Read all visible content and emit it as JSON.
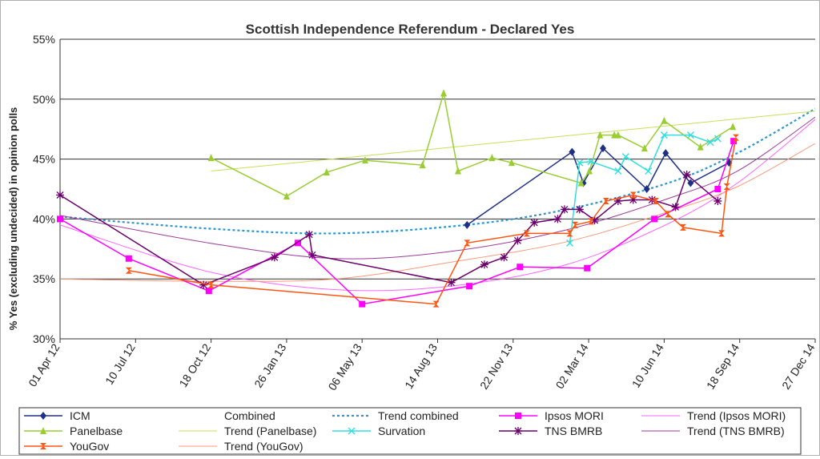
{
  "chart_data": {
    "type": "line",
    "title": "Scottish Independence Referendum - Declared Yes",
    "ylabel": "% Yes (excluding undecided) in opinion polls",
    "ylim": [
      30,
      55
    ],
    "y_ticks": [
      30,
      35,
      40,
      45,
      50,
      55
    ],
    "y_tick_labels": [
      "30%",
      "35%",
      "40%",
      "45%",
      "50%",
      "55%"
    ],
    "x_range": [
      "2012-04-01",
      "2014-12-27"
    ],
    "x_ticks": [
      "2012-04-01",
      "2012-07-10",
      "2012-10-18",
      "2013-01-26",
      "2013-05-06",
      "2013-08-14",
      "2013-11-22",
      "2014-03-02",
      "2014-06-10",
      "2014-09-18",
      "2014-12-27"
    ],
    "x_tick_labels": [
      "01 Apr 12",
      "10 Jul 12",
      "18 Oct 12",
      "26 Jan 13",
      "06 May 13",
      "14 Aug 13",
      "22 Nov 13",
      "02 Mar 14",
      "10 Jun 14",
      "18 Sep 14",
      "27 Dec 14"
    ],
    "grid": "horizontal",
    "legend_position": "bottom",
    "series": [
      {
        "name": "ICM",
        "kind": "data",
        "color": "#1f2f86",
        "marker": "diamond",
        "points": [
          [
            "2013-09-22",
            39.5
          ],
          [
            "2014-02-08",
            45.6
          ],
          [
            "2014-02-23",
            43.0
          ],
          [
            "2014-03-21",
            45.9
          ],
          [
            "2014-05-18",
            42.5
          ],
          [
            "2014-06-12",
            45.5
          ],
          [
            "2014-07-15",
            43.0
          ],
          [
            "2014-09-04",
            44.7
          ]
        ]
      },
      {
        "name": "Combined",
        "kind": "legend-only",
        "color": "#ffffff",
        "marker": "none",
        "points": []
      },
      {
        "name": "Trend combined",
        "kind": "trend",
        "color": "#2e95d0",
        "dash": "3,3",
        "width": 2.2,
        "points": [
          [
            "2012-04-01",
            40.2
          ],
          [
            "2012-10-15",
            39.2
          ],
          [
            "2013-04-01",
            38.8
          ],
          [
            "2013-09-20",
            39.5
          ],
          [
            "2014-02-01",
            40.8
          ],
          [
            "2014-06-15",
            43.0
          ],
          [
            "2014-09-15",
            45.5
          ],
          [
            "2014-12-27",
            49.2
          ]
        ]
      },
      {
        "name": "Ipsos MORI",
        "kind": "data",
        "color": "#ff00ff",
        "marker": "square",
        "points": [
          [
            "2012-04-01",
            40.0
          ],
          [
            "2012-07-01",
            36.7
          ],
          [
            "2012-10-15",
            34.0
          ],
          [
            "2013-02-10",
            38.0
          ],
          [
            "2013-05-06",
            32.9
          ],
          [
            "2013-09-25",
            34.4
          ],
          [
            "2013-12-01",
            36.0
          ],
          [
            "2014-02-28",
            35.9
          ],
          [
            "2014-05-28",
            40.0
          ],
          [
            "2014-08-20",
            42.5
          ],
          [
            "2014-09-10",
            46.5
          ]
        ]
      },
      {
        "name": "Trend (Ipsos MORI)",
        "kind": "trend",
        "color": "#ff66ff",
        "width": 1,
        "points": [
          [
            "2012-04-01",
            39.5
          ],
          [
            "2012-10-15",
            35.6
          ],
          [
            "2013-04-01",
            34.1
          ],
          [
            "2013-09-01",
            34.4
          ],
          [
            "2014-02-01",
            36.2
          ],
          [
            "2014-06-15",
            39.6
          ],
          [
            "2014-09-15",
            43.0
          ],
          [
            "2014-12-27",
            48.3
          ]
        ]
      },
      {
        "name": "Panelbase",
        "kind": "data",
        "color": "#9acd32",
        "marker": "triangle",
        "points": [
          [
            "2012-10-18",
            45.1
          ],
          [
            "2013-01-26",
            41.9
          ],
          [
            "2013-03-20",
            43.9
          ],
          [
            "2013-05-10",
            44.9
          ],
          [
            "2013-07-25",
            44.5
          ],
          [
            "2013-08-22",
            50.5
          ],
          [
            "2013-09-10",
            44.0
          ],
          [
            "2013-10-25",
            45.1
          ],
          [
            "2013-11-20",
            44.7
          ],
          [
            "2014-02-20",
            43.0
          ],
          [
            "2014-03-03",
            44.0
          ],
          [
            "2014-03-17",
            47.0
          ],
          [
            "2014-04-05",
            47.0
          ],
          [
            "2014-04-10",
            47.0
          ],
          [
            "2014-05-15",
            45.9
          ],
          [
            "2014-06-10",
            48.2
          ],
          [
            "2014-07-28",
            46.0
          ],
          [
            "2014-09-09",
            47.7
          ]
        ]
      },
      {
        "name": "Trend (Panelbase)",
        "kind": "trend",
        "color": "#c7e05a",
        "width": 1,
        "points": [
          [
            "2012-10-18",
            44.0
          ],
          [
            "2014-12-27",
            49.0
          ]
        ]
      },
      {
        "name": "Survation",
        "kind": "data",
        "color": "#33dddd",
        "marker": "x",
        "points": [
          [
            "2014-02-05",
            38.0
          ],
          [
            "2014-02-18",
            44.7
          ],
          [
            "2014-03-05",
            44.8
          ],
          [
            "2014-04-10",
            44.0
          ],
          [
            "2014-04-20",
            45.2
          ],
          [
            "2014-05-20",
            44.0
          ],
          [
            "2014-06-10",
            47.0
          ],
          [
            "2014-07-15",
            47.0
          ],
          [
            "2014-08-10",
            46.4
          ],
          [
            "2014-08-20",
            46.7
          ]
        ]
      },
      {
        "name": "TNS BMRB",
        "kind": "data",
        "color": "#6b006b",
        "marker": "star",
        "points": [
          [
            "2012-04-01",
            42.0
          ],
          [
            "2012-10-08",
            34.5
          ],
          [
            "2013-01-10",
            36.8
          ],
          [
            "2013-02-25",
            38.7
          ],
          [
            "2013-03-01",
            37.0
          ],
          [
            "2013-09-01",
            34.7
          ],
          [
            "2013-10-15",
            36.2
          ],
          [
            "2013-11-10",
            36.8
          ],
          [
            "2013-11-28",
            38.2
          ],
          [
            "2013-12-20",
            39.7
          ],
          [
            "2014-01-20",
            40.0
          ],
          [
            "2014-01-29",
            40.8
          ],
          [
            "2014-02-18",
            40.8
          ],
          [
            "2014-03-10",
            39.9
          ],
          [
            "2014-04-10",
            41.5
          ],
          [
            "2014-04-30",
            41.6
          ],
          [
            "2014-05-25",
            41.6
          ],
          [
            "2014-06-25",
            41.0
          ],
          [
            "2014-07-10",
            43.7
          ],
          [
            "2014-08-20",
            41.5
          ]
        ]
      },
      {
        "name": "Trend (TNS BMRB)",
        "kind": "trend",
        "color": "#9b3b9b",
        "width": 1,
        "points": [
          [
            "2012-04-01",
            40.3
          ],
          [
            "2012-10-15",
            38.0
          ],
          [
            "2013-04-01",
            36.7
          ],
          [
            "2013-09-01",
            37.3
          ],
          [
            "2014-02-01",
            39.1
          ],
          [
            "2014-06-15",
            41.7
          ],
          [
            "2014-09-15",
            44.0
          ],
          [
            "2014-12-27",
            48.5
          ]
        ]
      },
      {
        "name": "YouGov",
        "kind": "data",
        "color": "#ff5511",
        "marker": "hourglass",
        "points": [
          [
            "2012-07-01",
            35.7
          ],
          [
            "2012-10-18",
            34.5
          ],
          [
            "2013-08-12",
            32.9
          ],
          [
            "2013-09-22",
            38.0
          ],
          [
            "2013-12-10",
            38.8
          ],
          [
            "2014-02-05",
            38.8
          ],
          [
            "2014-02-12",
            39.5
          ],
          [
            "2014-03-05",
            39.8
          ],
          [
            "2014-03-25",
            41.5
          ],
          [
            "2014-04-30",
            42.0
          ],
          [
            "2014-05-30",
            41.5
          ],
          [
            "2014-06-15",
            40.4
          ],
          [
            "2014-07-05",
            39.3
          ],
          [
            "2014-08-25",
            38.8
          ],
          [
            "2014-09-01",
            42.7
          ],
          [
            "2014-09-13",
            46.8
          ]
        ]
      },
      {
        "name": "Trend (YouGov)",
        "kind": "trend",
        "color": "#f79a7a",
        "width": 1,
        "points": [
          [
            "2012-04-01",
            35.0
          ],
          [
            "2012-10-15",
            34.8
          ],
          [
            "2013-04-01",
            35.0
          ],
          [
            "2013-09-01",
            36.4
          ],
          [
            "2014-02-01",
            38.1
          ],
          [
            "2014-06-15",
            40.6
          ],
          [
            "2014-09-15",
            42.7
          ],
          [
            "2014-12-27",
            46.3
          ]
        ]
      }
    ]
  }
}
